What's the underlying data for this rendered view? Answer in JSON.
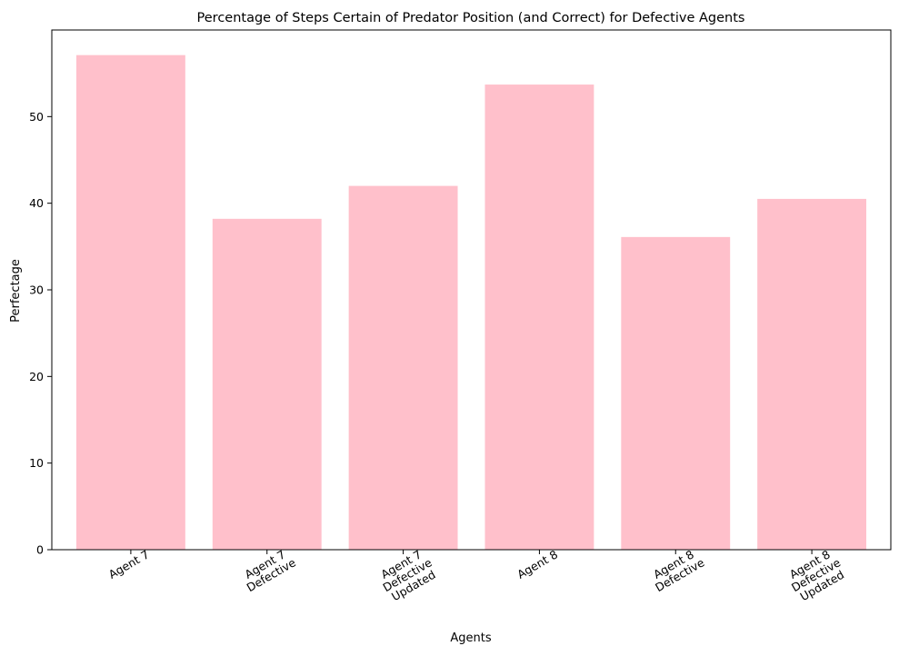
{
  "chart_data": {
    "type": "bar",
    "title": "Percentage of Steps Certain of Predator Position (and Correct) for Defective Agents",
    "xlabel": "Agents",
    "ylabel": "Perfectage",
    "categories": [
      [
        "Agent 7"
      ],
      [
        "Agent 7",
        "Defective"
      ],
      [
        "Agent 7",
        "Defective",
        "Updated"
      ],
      [
        "Agent 8"
      ],
      [
        "Agent 8",
        "Defective"
      ],
      [
        "Agent 8",
        "Defective",
        "Updated"
      ]
    ],
    "values": [
      57.1,
      38.2,
      42.0,
      53.7,
      36.1,
      40.5
    ],
    "ylim": [
      0,
      60
    ],
    "yticks": [
      0,
      10,
      20,
      30,
      40,
      50
    ],
    "bar_color": "#ffc0cb",
    "grid": false,
    "x_tick_rotation_deg": 30
  }
}
